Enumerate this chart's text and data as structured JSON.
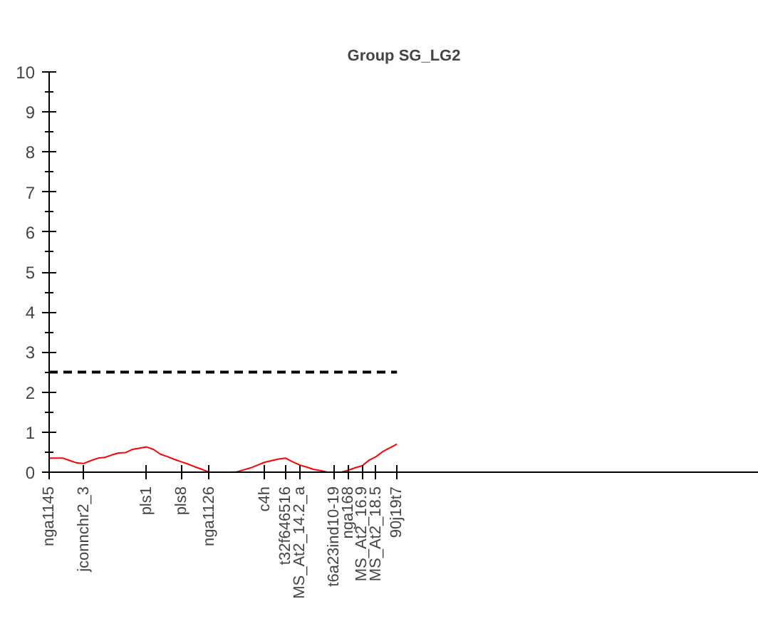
{
  "chart_data": {
    "type": "line",
    "title": "Group SG_LG2",
    "categories": [
      "nga1145",
      null,
      null,
      null,
      null,
      "jconnchr2_3",
      null,
      null,
      null,
      null,
      null,
      null,
      null,
      null,
      "pls1",
      null,
      null,
      null,
      null,
      "pls8",
      null,
      null,
      null,
      "nga1126",
      null,
      null,
      null,
      null,
      null,
      null,
      null,
      "c4h",
      null,
      null,
      "t32f646516",
      null,
      "MS_At2_14.2_a",
      null,
      null,
      null,
      null,
      "t6a23ind10-19",
      null,
      "nga168",
      null,
      "MS_At2_16.9",
      null,
      "MS_At2_18.5",
      null,
      null,
      "90j19t7"
    ],
    "series": [
      {
        "color": "#ff0000",
        "values": [
          0.35,
          0.35,
          0.35,
          0.29,
          0.23,
          0.22,
          0.29,
          0.35,
          0.37,
          0.43,
          0.48,
          0.49,
          0.57,
          0.6,
          0.63,
          0.57,
          0.45,
          0.39,
          0.32,
          0.26,
          0.2,
          0.13,
          0.07,
          0,
          0,
          0,
          0,
          0.01,
          0.06,
          0.11,
          0.18,
          0.25,
          0.29,
          0.33,
          0.35,
          0.26,
          0.18,
          0.13,
          0.07,
          0.04,
          0,
          0,
          0,
          0.05,
          0.11,
          0.16,
          0.3,
          0.39,
          0.52,
          0.61,
          0.7
        ]
      }
    ],
    "ylim": [
      0,
      10
    ],
    "yticks": [
      0,
      1,
      2,
      3,
      4,
      5,
      6,
      7,
      8,
      9,
      10
    ],
    "ref_lines": [
      {
        "axis": "y",
        "value": 2.5,
        "color": "#000000",
        "line_style": "dashed"
      }
    ],
    "grid": false,
    "marker": "none",
    "line_style": "solid"
  }
}
